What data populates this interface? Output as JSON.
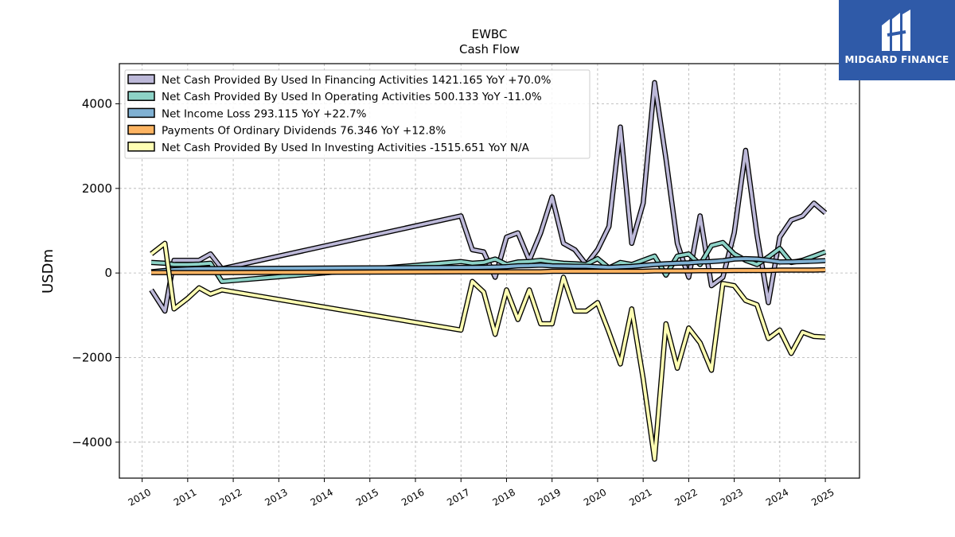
{
  "chart_data": {
    "type": "line",
    "title": "EWBC",
    "subtitle": "Cash Flow",
    "xlabel": "",
    "ylabel": "USDm",
    "xlim": [
      2009.5,
      2025.75
    ],
    "ylim": [
      -4850,
      4950
    ],
    "yticks": [
      -4000,
      -2000,
      0,
      2000,
      4000
    ],
    "ytick_labels": [
      "−4000",
      "−2000",
      "0",
      "2000",
      "4000"
    ],
    "xticks": [
      2010,
      2011,
      2012,
      2013,
      2014,
      2015,
      2016,
      2017,
      2018,
      2019,
      2020,
      2021,
      2022,
      2023,
      2024,
      2025
    ],
    "xtick_labels": [
      "2010",
      "2011",
      "2012",
      "2013",
      "2014",
      "2015",
      "2016",
      "2017",
      "2018",
      "2019",
      "2020",
      "2021",
      "2022",
      "2023",
      "2024",
      "2025"
    ],
    "grid": true,
    "legend_position": "top-left",
    "series": [
      {
        "name": "Net Cash Provided By Used In Financing Activities",
        "legend_label": "Net Cash Provided By Used In Financing Activities  1421.165 YoY +70.0%",
        "color": "#bcb8d8",
        "points": [
          [
            2010.2,
            -400
          ],
          [
            2010.5,
            -900
          ],
          [
            2010.7,
            300
          ],
          [
            2011.0,
            300
          ],
          [
            2011.25,
            300
          ],
          [
            2011.5,
            450
          ],
          [
            2011.75,
            100
          ],
          [
            2017.0,
            1350
          ],
          [
            2017.25,
            550
          ],
          [
            2017.5,
            500
          ],
          [
            2017.75,
            -100
          ],
          [
            2018.0,
            850
          ],
          [
            2018.25,
            950
          ],
          [
            2018.5,
            300
          ],
          [
            2018.75,
            950
          ],
          [
            2019.0,
            1800
          ],
          [
            2019.25,
            700
          ],
          [
            2019.5,
            550
          ],
          [
            2019.75,
            200
          ],
          [
            2020.0,
            550
          ],
          [
            2020.25,
            1100
          ],
          [
            2020.5,
            3450
          ],
          [
            2020.75,
            700
          ],
          [
            2021.0,
            1650
          ],
          [
            2021.25,
            4500
          ],
          [
            2021.5,
            2700
          ],
          [
            2021.75,
            700
          ],
          [
            2022.0,
            -100
          ],
          [
            2022.25,
            1350
          ],
          [
            2022.5,
            -300
          ],
          [
            2022.75,
            -100
          ],
          [
            2023.0,
            950
          ],
          [
            2023.25,
            2900
          ],
          [
            2023.5,
            900
          ],
          [
            2023.75,
            -700
          ],
          [
            2024.0,
            850
          ],
          [
            2024.25,
            1250
          ],
          [
            2024.5,
            1350
          ],
          [
            2024.75,
            1650
          ],
          [
            2025.0,
            1421.165
          ]
        ]
      },
      {
        "name": "Net Cash Provided By Used In Operating Activities",
        "legend_label": "Net Cash Provided By Used In Operating Activities  500.133 YoY -11.0%",
        "color": "#8dd3c7",
        "points": [
          [
            2010.2,
            250
          ],
          [
            2010.5,
            230
          ],
          [
            2010.7,
            200
          ],
          [
            2011.0,
            200
          ],
          [
            2011.25,
            210
          ],
          [
            2011.5,
            230
          ],
          [
            2011.75,
            -200
          ],
          [
            2017.0,
            270
          ],
          [
            2017.25,
            230
          ],
          [
            2017.5,
            250
          ],
          [
            2017.75,
            330
          ],
          [
            2018.0,
            200
          ],
          [
            2018.25,
            260
          ],
          [
            2018.5,
            270
          ],
          [
            2018.75,
            300
          ],
          [
            2019.0,
            260
          ],
          [
            2019.25,
            230
          ],
          [
            2019.5,
            220
          ],
          [
            2019.75,
            200
          ],
          [
            2020.0,
            340
          ],
          [
            2020.25,
            120
          ],
          [
            2020.5,
            250
          ],
          [
            2020.75,
            200
          ],
          [
            2021.0,
            300
          ],
          [
            2021.25,
            400
          ],
          [
            2021.5,
            -50
          ],
          [
            2021.75,
            400
          ],
          [
            2022.0,
            450
          ],
          [
            2022.25,
            200
          ],
          [
            2022.5,
            650
          ],
          [
            2022.75,
            720
          ],
          [
            2023.0,
            450
          ],
          [
            2023.25,
            300
          ],
          [
            2023.5,
            200
          ],
          [
            2023.75,
            380
          ],
          [
            2024.0,
            580
          ],
          [
            2024.25,
            250
          ],
          [
            2024.5,
            300
          ],
          [
            2024.75,
            400
          ],
          [
            2025.0,
            500.133
          ]
        ]
      },
      {
        "name": "Net Income Loss",
        "legend_label": "Net Income Loss  293.115 YoY +22.7%",
        "color": "#80b1d3",
        "points": [
          [
            2010.2,
            30
          ],
          [
            2010.5,
            60
          ],
          [
            2010.7,
            80
          ],
          [
            2011.0,
            95
          ],
          [
            2011.25,
            100
          ],
          [
            2011.5,
            105
          ],
          [
            2011.75,
            105
          ],
          [
            2017.0,
            130
          ],
          [
            2017.25,
            130
          ],
          [
            2017.5,
            135
          ],
          [
            2017.75,
            140
          ],
          [
            2018.0,
            150
          ],
          [
            2018.25,
            170
          ],
          [
            2018.5,
            175
          ],
          [
            2018.75,
            185
          ],
          [
            2019.0,
            170
          ],
          [
            2019.25,
            165
          ],
          [
            2019.5,
            160
          ],
          [
            2019.75,
            160
          ],
          [
            2020.0,
            145
          ],
          [
            2020.25,
            130
          ],
          [
            2020.5,
            145
          ],
          [
            2020.75,
            155
          ],
          [
            2021.0,
            180
          ],
          [
            2021.25,
            200
          ],
          [
            2021.5,
            220
          ],
          [
            2021.75,
            230
          ],
          [
            2022.0,
            240
          ],
          [
            2022.25,
            260
          ],
          [
            2022.5,
            270
          ],
          [
            2022.75,
            290
          ],
          [
            2023.0,
            330
          ],
          [
            2023.25,
            340
          ],
          [
            2023.5,
            330
          ],
          [
            2023.75,
            300
          ],
          [
            2024.0,
            260
          ],
          [
            2024.25,
            265
          ],
          [
            2024.5,
            270
          ],
          [
            2024.75,
            280
          ],
          [
            2025.0,
            293.115
          ]
        ]
      },
      {
        "name": "Payments Of Ordinary Dividends",
        "legend_label": "Payments Of Ordinary Dividends  76.346 YoY +12.8%",
        "color": "#fdb462",
        "points": [
          [
            2010.2,
            10
          ],
          [
            2010.5,
            10
          ],
          [
            2010.7,
            10
          ],
          [
            2011.0,
            10
          ],
          [
            2011.25,
            10
          ],
          [
            2011.5,
            10
          ],
          [
            2011.75,
            10
          ],
          [
            2017.0,
            30
          ],
          [
            2017.25,
            30
          ],
          [
            2017.5,
            30
          ],
          [
            2017.75,
            30
          ],
          [
            2018.0,
            30
          ],
          [
            2018.25,
            30
          ],
          [
            2018.5,
            30
          ],
          [
            2018.75,
            30
          ],
          [
            2019.0,
            40
          ],
          [
            2019.25,
            40
          ],
          [
            2019.5,
            40
          ],
          [
            2019.75,
            40
          ],
          [
            2020.0,
            40
          ],
          [
            2020.25,
            40
          ],
          [
            2020.5,
            40
          ],
          [
            2020.75,
            40
          ],
          [
            2021.0,
            40
          ],
          [
            2021.25,
            50
          ],
          [
            2021.5,
            50
          ],
          [
            2021.75,
            50
          ],
          [
            2022.0,
            50
          ],
          [
            2022.25,
            55
          ],
          [
            2022.5,
            55
          ],
          [
            2022.75,
            55
          ],
          [
            2023.0,
            60
          ],
          [
            2023.25,
            60
          ],
          [
            2023.5,
            60
          ],
          [
            2023.75,
            60
          ],
          [
            2024.0,
            68
          ],
          [
            2024.25,
            68
          ],
          [
            2024.5,
            68
          ],
          [
            2024.75,
            68
          ],
          [
            2025.0,
            76.346
          ]
        ]
      },
      {
        "name": "Net Cash Provided By Used In Investing Activities",
        "legend_label": "Net Cash Provided By Used In Investing Activities  -1515.651 YoY N/A",
        "color": "#ffffb3",
        "points": [
          [
            2010.2,
            450
          ],
          [
            2010.5,
            700
          ],
          [
            2010.7,
            -850
          ],
          [
            2011.0,
            -600
          ],
          [
            2011.25,
            -350
          ],
          [
            2011.5,
            -500
          ],
          [
            2011.75,
            -400
          ],
          [
            2017.0,
            -1350
          ],
          [
            2017.25,
            -200
          ],
          [
            2017.5,
            -450
          ],
          [
            2017.75,
            -1450
          ],
          [
            2018.0,
            -400
          ],
          [
            2018.25,
            -1100
          ],
          [
            2018.5,
            -400
          ],
          [
            2018.75,
            -1200
          ],
          [
            2019.0,
            -1200
          ],
          [
            2019.25,
            -100
          ],
          [
            2019.5,
            -900
          ],
          [
            2019.75,
            -900
          ],
          [
            2020.0,
            -700
          ],
          [
            2020.25,
            -1400
          ],
          [
            2020.5,
            -2150
          ],
          [
            2020.75,
            -850
          ],
          [
            2021.0,
            -2500
          ],
          [
            2021.25,
            -4400
          ],
          [
            2021.5,
            -1200
          ],
          [
            2021.75,
            -2250
          ],
          [
            2022.0,
            -1300
          ],
          [
            2022.25,
            -1650
          ],
          [
            2022.5,
            -2300
          ],
          [
            2022.75,
            -250
          ],
          [
            2023.0,
            -300
          ],
          [
            2023.25,
            -650
          ],
          [
            2023.5,
            -750
          ],
          [
            2023.75,
            -1550
          ],
          [
            2024.0,
            -1350
          ],
          [
            2024.25,
            -1900
          ],
          [
            2024.5,
            -1400
          ],
          [
            2024.75,
            -1500
          ],
          [
            2025.0,
            -1515.651
          ]
        ]
      }
    ]
  },
  "logo": {
    "name": "MIDGARD FINANCE"
  }
}
